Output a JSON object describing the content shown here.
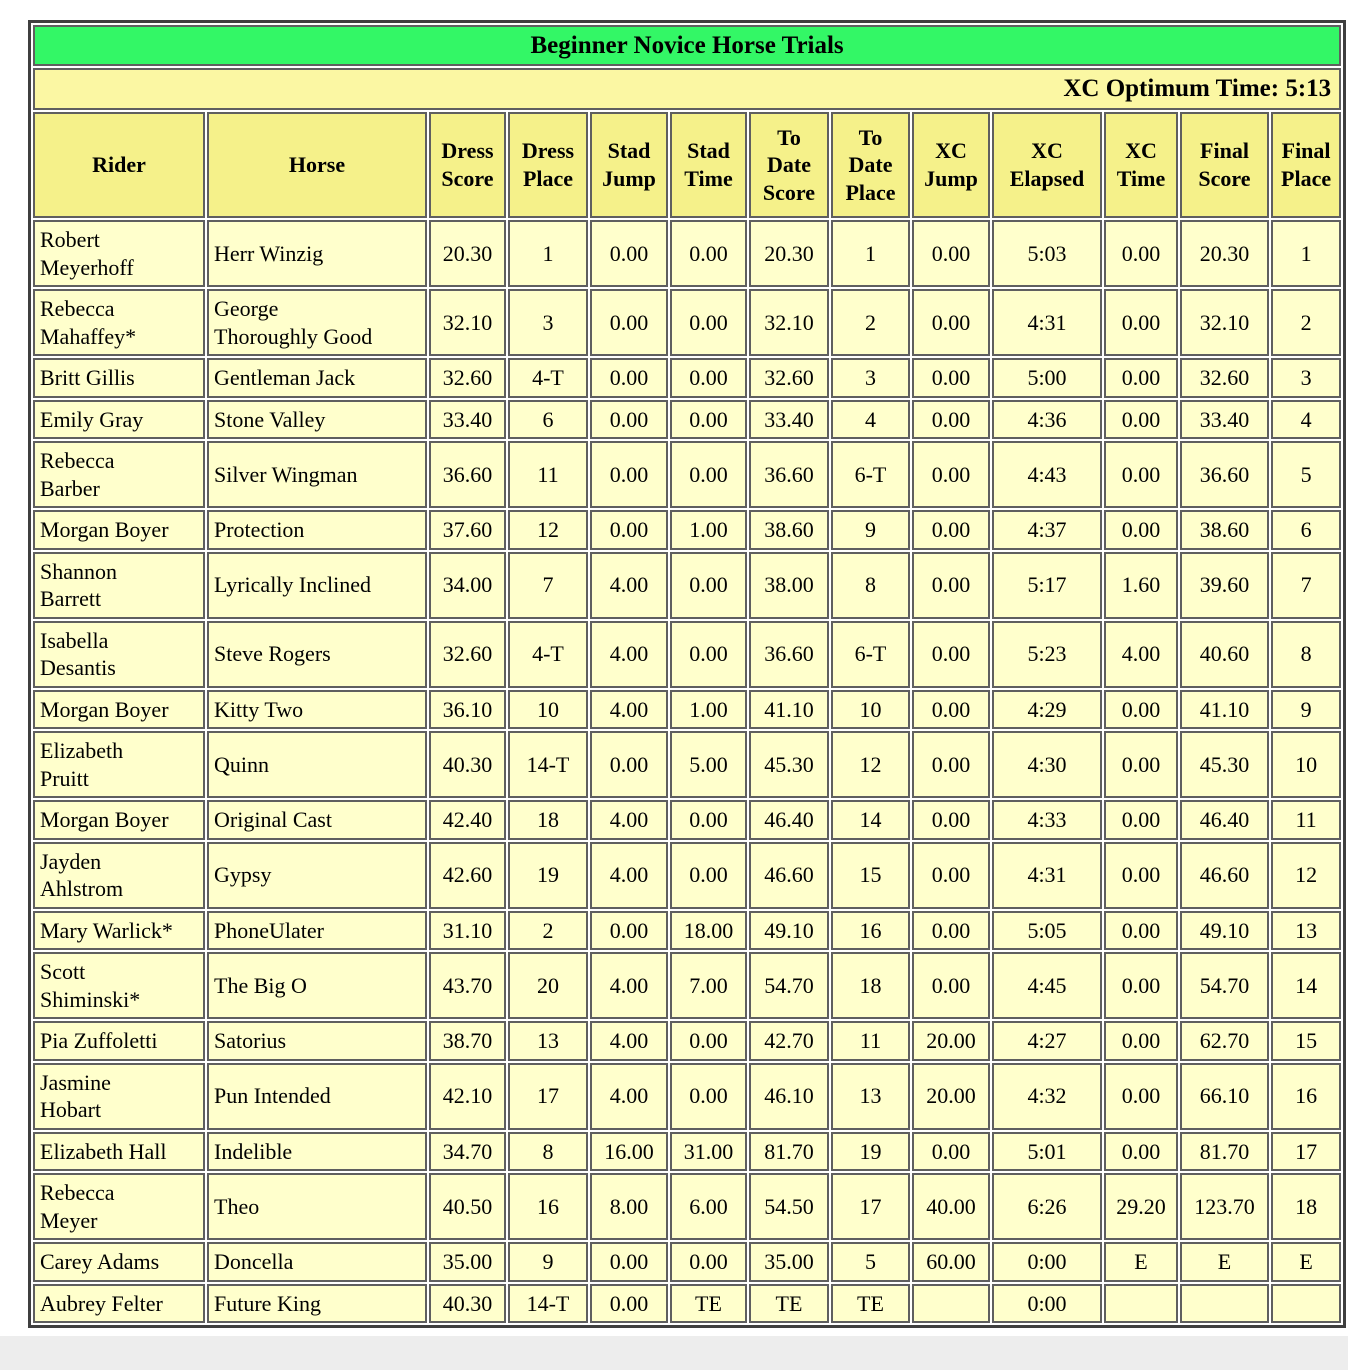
{
  "page": {
    "title": "Beginner Novice Horse Trials",
    "xc_optimum_time": "XC Optimum Time: 5:13"
  },
  "colors": {
    "title_bg": "#33f766",
    "optimum_bar_bg": "#fbf7a3",
    "header_cell_bg": "#f5f18a",
    "data_cell_bg": "#ffffcc"
  },
  "table": {
    "columns": [
      "Rider",
      "Horse",
      "Dress\nScore",
      "Dress\nPlace",
      "Stad\nJump",
      "Stad\nTime",
      "To\nDate\nScore",
      "To\nDate\nPlace",
      "XC\nJump",
      "XC\nElapsed",
      "XC\nTime",
      "Final\nScore",
      "Final\nPlace"
    ],
    "rows": [
      [
        "Robert\nMeyerhoff",
        "Herr Winzig",
        "20.30",
        "1",
        "0.00",
        "0.00",
        "20.30",
        "1",
        "0.00",
        "5:03",
        "0.00",
        "20.30",
        "1"
      ],
      [
        "Rebecca\nMahaffey*",
        "George\nThoroughly Good",
        "32.10",
        "3",
        "0.00",
        "0.00",
        "32.10",
        "2",
        "0.00",
        "4:31",
        "0.00",
        "32.10",
        "2"
      ],
      [
        "Britt Gillis",
        "Gentleman Jack",
        "32.60",
        "4-T",
        "0.00",
        "0.00",
        "32.60",
        "3",
        "0.00",
        "5:00",
        "0.00",
        "32.60",
        "3"
      ],
      [
        "Emily Gray",
        "Stone Valley",
        "33.40",
        "6",
        "0.00",
        "0.00",
        "33.40",
        "4",
        "0.00",
        "4:36",
        "0.00",
        "33.40",
        "4"
      ],
      [
        "Rebecca\nBarber",
        "Silver Wingman",
        "36.60",
        "11",
        "0.00",
        "0.00",
        "36.60",
        "6-T",
        "0.00",
        "4:43",
        "0.00",
        "36.60",
        "5"
      ],
      [
        "Morgan Boyer",
        "Protection",
        "37.60",
        "12",
        "0.00",
        "1.00",
        "38.60",
        "9",
        "0.00",
        "4:37",
        "0.00",
        "38.60",
        "6"
      ],
      [
        "Shannon\nBarrett",
        "Lyrically Inclined",
        "34.00",
        "7",
        "4.00",
        "0.00",
        "38.00",
        "8",
        "0.00",
        "5:17",
        "1.60",
        "39.60",
        "7"
      ],
      [
        "Isabella\nDesantis",
        "Steve Rogers",
        "32.60",
        "4-T",
        "4.00",
        "0.00",
        "36.60",
        "6-T",
        "0.00",
        "5:23",
        "4.00",
        "40.60",
        "8"
      ],
      [
        "Morgan Boyer",
        "Kitty Two",
        "36.10",
        "10",
        "4.00",
        "1.00",
        "41.10",
        "10",
        "0.00",
        "4:29",
        "0.00",
        "41.10",
        "9"
      ],
      [
        "Elizabeth\nPruitt",
        "Quinn",
        "40.30",
        "14-T",
        "0.00",
        "5.00",
        "45.30",
        "12",
        "0.00",
        "4:30",
        "0.00",
        "45.30",
        "10"
      ],
      [
        "Morgan Boyer",
        "Original Cast",
        "42.40",
        "18",
        "4.00",
        "0.00",
        "46.40",
        "14",
        "0.00",
        "4:33",
        "0.00",
        "46.40",
        "11"
      ],
      [
        "Jayden\nAhlstrom",
        "Gypsy",
        "42.60",
        "19",
        "4.00",
        "0.00",
        "46.60",
        "15",
        "0.00",
        "4:31",
        "0.00",
        "46.60",
        "12"
      ],
      [
        "Mary Warlick*",
        "PhoneUlater",
        "31.10",
        "2",
        "0.00",
        "18.00",
        "49.10",
        "16",
        "0.00",
        "5:05",
        "0.00",
        "49.10",
        "13"
      ],
      [
        "Scott\nShiminski*",
        "The Big O",
        "43.70",
        "20",
        "4.00",
        "7.00",
        "54.70",
        "18",
        "0.00",
        "4:45",
        "0.00",
        "54.70",
        "14"
      ],
      [
        "Pia Zuffoletti",
        "Satorius",
        "38.70",
        "13",
        "4.00",
        "0.00",
        "42.70",
        "11",
        "20.00",
        "4:27",
        "0.00",
        "62.70",
        "15"
      ],
      [
        "Jasmine\nHobart",
        "Pun Intended",
        "42.10",
        "17",
        "4.00",
        "0.00",
        "46.10",
        "13",
        "20.00",
        "4:32",
        "0.00",
        "66.10",
        "16"
      ],
      [
        "Elizabeth Hall",
        "Indelible",
        "34.70",
        "8",
        "16.00",
        "31.00",
        "81.70",
        "19",
        "0.00",
        "5:01",
        "0.00",
        "81.70",
        "17"
      ],
      [
        "Rebecca\nMeyer",
        "Theo",
        "40.50",
        "16",
        "8.00",
        "6.00",
        "54.50",
        "17",
        "40.00",
        "6:26",
        "29.20",
        "123.70",
        "18"
      ],
      [
        "Carey Adams",
        "Doncella",
        "35.00",
        "9",
        "0.00",
        "0.00",
        "35.00",
        "5",
        "60.00",
        "0:00",
        "E",
        "E",
        "E"
      ],
      [
        "Aubrey Felter",
        "Future King",
        "40.30",
        "14-T",
        "0.00",
        "TE",
        "TE",
        "TE",
        "",
        "0:00",
        "",
        "",
        ""
      ]
    ]
  }
}
